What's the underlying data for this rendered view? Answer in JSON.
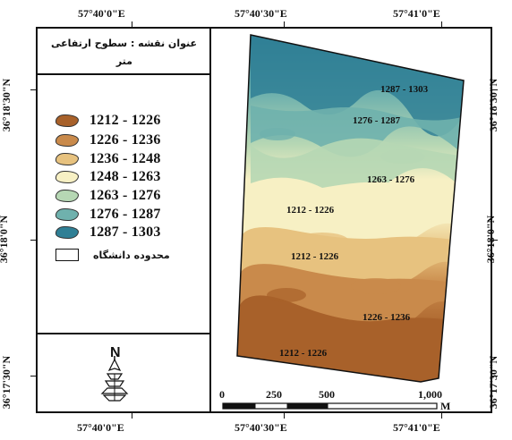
{
  "map": {
    "title_line1": "عنوان نقشه : سطوح ارتفاعی",
    "title_line2": "متر",
    "coords": {
      "top": [
        "57°40'0\"E",
        "57°40'30\"E",
        "57°41'0\"E"
      ],
      "bottom": [
        "57°40'0\"E",
        "57°40'30\"E",
        "57°41'0\"E"
      ],
      "left": [
        "36°18'30\"N",
        "36°18'0\"N",
        "36°17'30\"N"
      ],
      "right": [
        "36°18'30\"N",
        "36°18'0\"N",
        "36°17'30\"N"
      ]
    },
    "legend": [
      {
        "label": "1212 - 1226",
        "color": "#a8612a"
      },
      {
        "label": "1226 - 1236",
        "color": "#c98a4b"
      },
      {
        "label": "1236 - 1248",
        "color": "#e7c27f"
      },
      {
        "label": "1248 - 1263",
        "color": "#f7f0c4"
      },
      {
        "label": "1263 - 1276",
        "color": "#b6d7b4"
      },
      {
        "label": "1276 - 1287",
        "color": "#6fb1ad"
      },
      {
        "label": "1287 - 1303",
        "color": "#2f7f95"
      }
    ],
    "boundary_label": "محدوده دانشگاه",
    "north_letter": "N",
    "map_labels": [
      "1287 - 1303",
      "1276 - 1287",
      "1263 - 1276",
      "1212 - 1226",
      "1212 - 1226",
      "1226 - 1236",
      "1212 - 1226"
    ],
    "scale": {
      "ticks": [
        "0",
        "250",
        "500",
        "1,000"
      ],
      "unit": "M"
    }
  }
}
